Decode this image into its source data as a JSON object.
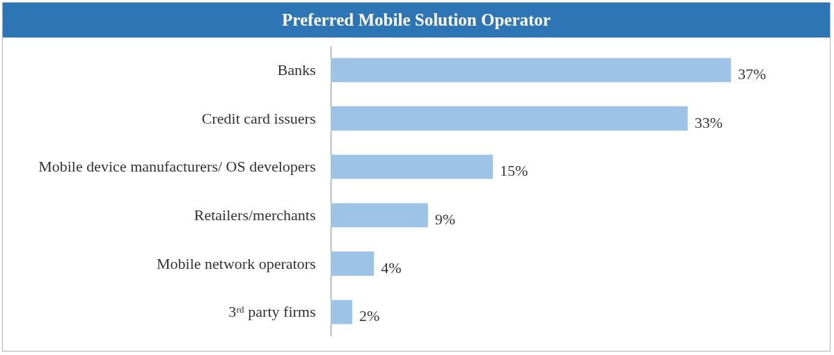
{
  "chart_data": {
    "type": "bar",
    "orientation": "horizontal",
    "title": "Preferred Mobile Solution Operator",
    "categories": [
      "Banks",
      "Credit card issuers",
      "Mobile device manufacturers/\nOS developers",
      "Retailers/merchants",
      "Mobile network operators",
      "3ʳᵈ party firms"
    ],
    "values": [
      37,
      33,
      15,
      9,
      4,
      2
    ],
    "value_labels": [
      "37%",
      "33%",
      "15%",
      "9%",
      "4%",
      "2%"
    ],
    "color": "#9dc3e6"
  }
}
